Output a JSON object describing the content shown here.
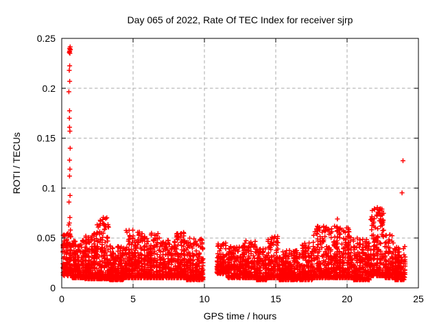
{
  "chart_data": {
    "type": "scatter",
    "title": "Day 065 of 2022, Rate Of TEC Index for receiver sjrp",
    "xlabel": "GPS time / hours",
    "ylabel": "ROTI / TECUs",
    "xlim": [
      0,
      25
    ],
    "ylim": [
      0,
      0.25
    ],
    "xticks": [
      0,
      5,
      10,
      15,
      20,
      25
    ],
    "xtick_labels": [
      "0",
      "5",
      "10",
      "15",
      "20",
      "25"
    ],
    "yticks": [
      0,
      0.05,
      0.1,
      0.15,
      0.2,
      0.25
    ],
    "ytick_labels": [
      "0",
      "0.05",
      "0.1",
      "0.15",
      "0.2",
      "0.25"
    ],
    "grid": {
      "show": true,
      "color": "#aaaaaa",
      "style": "dashed",
      "dash": "4.5 3.5"
    },
    "legend": null,
    "frame_color": "#000000",
    "text_color": "#000000",
    "marker": {
      "symbol": "plus",
      "color": "#ff0000",
      "size": 7,
      "stroke_width": 1.5
    },
    "seed": 2022065,
    "data_gap_hours": [
      9.95,
      10.85
    ],
    "bands": [
      {
        "x0": 0.05,
        "x1": 0.7,
        "n": 130,
        "y_lo": 0.012,
        "y_hi": 0.055,
        "bias": 1.6
      },
      {
        "x0": 0.7,
        "x1": 1.6,
        "n": 190,
        "y_lo": 0.01,
        "y_hi": 0.048,
        "bias": 2.2
      },
      {
        "x0": 1.6,
        "x1": 2.4,
        "n": 190,
        "y_lo": 0.009,
        "y_hi": 0.055,
        "bias": 2.3
      },
      {
        "x0": 2.4,
        "x1": 3.3,
        "n": 210,
        "y_lo": 0.009,
        "y_hi": 0.073,
        "bias": 2.8
      },
      {
        "x0": 3.3,
        "x1": 4.4,
        "n": 230,
        "y_lo": 0.008,
        "y_hi": 0.042,
        "bias": 2.0
      },
      {
        "x0": 4.4,
        "x1": 5.7,
        "n": 270,
        "y_lo": 0.01,
        "y_hi": 0.058,
        "bias": 2.5
      },
      {
        "x0": 5.7,
        "x1": 7.0,
        "n": 260,
        "y_lo": 0.01,
        "y_hi": 0.055,
        "bias": 2.4
      },
      {
        "x0": 7.0,
        "x1": 8.0,
        "n": 200,
        "y_lo": 0.01,
        "y_hi": 0.048,
        "bias": 2.2
      },
      {
        "x0": 8.0,
        "x1": 8.7,
        "n": 150,
        "y_lo": 0.01,
        "y_hi": 0.057,
        "bias": 2.4
      },
      {
        "x0": 8.7,
        "x1": 9.95,
        "n": 230,
        "y_lo": 0.008,
        "y_hi": 0.05,
        "bias": 2.4
      },
      {
        "x0": 10.85,
        "x1": 11.6,
        "n": 110,
        "y_lo": 0.014,
        "y_hi": 0.045,
        "bias": 1.7
      },
      {
        "x0": 11.6,
        "x1": 12.8,
        "n": 210,
        "y_lo": 0.01,
        "y_hi": 0.042,
        "bias": 2.2
      },
      {
        "x0": 12.8,
        "x1": 13.6,
        "n": 150,
        "y_lo": 0.01,
        "y_hi": 0.048,
        "bias": 2.5
      },
      {
        "x0": 13.6,
        "x1": 14.4,
        "n": 150,
        "y_lo": 0.008,
        "y_hi": 0.04,
        "bias": 2.2
      },
      {
        "x0": 14.4,
        "x1": 15.2,
        "n": 160,
        "y_lo": 0.01,
        "y_hi": 0.052,
        "bias": 2.6
      },
      {
        "x0": 15.2,
        "x1": 16.8,
        "n": 290,
        "y_lo": 0.008,
        "y_hi": 0.038,
        "bias": 2.2
      },
      {
        "x0": 16.8,
        "x1": 17.6,
        "n": 150,
        "y_lo": 0.008,
        "y_hi": 0.045,
        "bias": 2.3
      },
      {
        "x0": 17.6,
        "x1": 19.6,
        "n": 400,
        "y_lo": 0.01,
        "y_hi": 0.062,
        "bias": 2.3
      },
      {
        "x0": 19.6,
        "x1": 20.4,
        "n": 170,
        "y_lo": 0.01,
        "y_hi": 0.061,
        "bias": 2.5
      },
      {
        "x0": 20.4,
        "x1": 21.6,
        "n": 220,
        "y_lo": 0.008,
        "y_hi": 0.05,
        "bias": 2.4
      },
      {
        "x0": 21.6,
        "x1": 22.6,
        "n": 210,
        "y_lo": 0.012,
        "y_hi": 0.082,
        "bias": 2.6
      },
      {
        "x0": 22.6,
        "x1": 23.3,
        "n": 140,
        "y_lo": 0.01,
        "y_hi": 0.055,
        "bias": 2.5
      },
      {
        "x0": 23.3,
        "x1": 24.1,
        "n": 150,
        "y_lo": 0.008,
        "y_hi": 0.042,
        "bias": 2.0
      }
    ],
    "spike_points": [
      [
        0.55,
        0.24
      ],
      [
        0.58,
        0.2385
      ],
      [
        0.61,
        0.239
      ],
      [
        0.56,
        0.237
      ],
      [
        0.53,
        0.236
      ],
      [
        0.59,
        0.2415
      ],
      [
        0.57,
        0.235
      ],
      [
        0.56,
        0.2225
      ],
      [
        0.53,
        0.218
      ],
      [
        0.56,
        0.207
      ],
      [
        0.5,
        0.1965
      ],
      [
        0.55,
        0.1775
      ],
      [
        0.54,
        0.17
      ],
      [
        0.55,
        0.161
      ],
      [
        0.57,
        0.157
      ],
      [
        0.59,
        0.14
      ],
      [
        0.55,
        0.128
      ],
      [
        0.57,
        0.119
      ],
      [
        0.55,
        0.112
      ],
      [
        0.58,
        0.0925
      ],
      [
        0.51,
        0.086
      ],
      [
        0.57,
        0.0705
      ],
      [
        0.54,
        0.065
      ],
      [
        0.49,
        0.063
      ],
      [
        0.61,
        0.058
      ],
      [
        0.45,
        0.052
      ],
      [
        19.32,
        0.069
      ],
      [
        22.12,
        0.0805
      ],
      [
        22.28,
        0.079
      ],
      [
        22.22,
        0.0755
      ],
      [
        22.07,
        0.073
      ],
      [
        22.35,
        0.072
      ],
      [
        23.85,
        0.0952
      ],
      [
        23.92,
        0.1274
      ]
    ]
  }
}
